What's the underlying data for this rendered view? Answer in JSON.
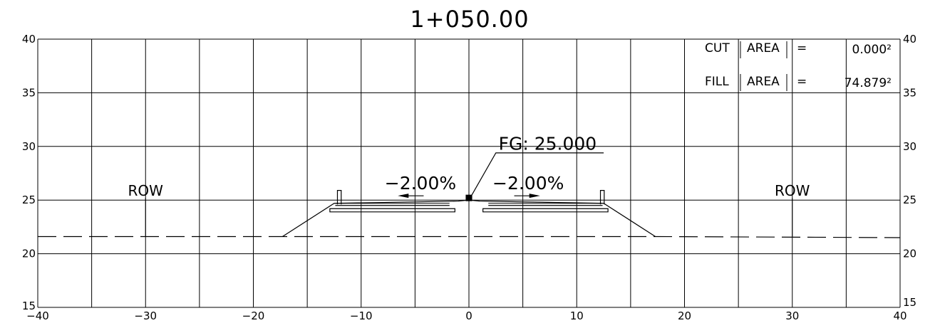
{
  "title": "1+050.00",
  "chart_data": {
    "type": "cross-section",
    "title": "1+050.00",
    "x_range": [
      -40,
      40
    ],
    "y_range": [
      15,
      40
    ],
    "x_ticks": [
      -40,
      -30,
      -20,
      -10,
      0,
      10,
      20,
      30,
      40
    ],
    "y_ticks": [
      15,
      20,
      25,
      30,
      35,
      40
    ],
    "x_tick_labels": [
      "-40",
      "-30",
      "-20",
      "-10",
      "0",
      "10",
      "20",
      "30",
      "40"
    ],
    "y_tick_labels": [
      "15",
      "20",
      "25",
      "30",
      "35",
      "40"
    ],
    "grid": true,
    "grid_step_x": 5,
    "grid_step_y": 5,
    "existing_ground": [
      [
        -40,
        21.6
      ],
      [
        -17.5,
        21.6
      ],
      [
        17.5,
        21.6
      ],
      [
        40,
        21.5
      ]
    ],
    "finished_grade": [
      [
        -17.3,
        21.6
      ],
      [
        -12.5,
        24.7
      ],
      [
        -1,
        24.9
      ],
      [
        0,
        25.0
      ],
      [
        1,
        24.9
      ],
      [
        12.5,
        24.7
      ],
      [
        17.3,
        21.6
      ]
    ],
    "row_markers": [
      {
        "x": -30,
        "label": "ROW"
      },
      {
        "x": 30,
        "label": "ROW"
      }
    ],
    "slope_labels": [
      {
        "x": -4.5,
        "text": "−2.00%",
        "direction": "left"
      },
      {
        "x": 5.5,
        "text": "−2.00%",
        "direction": "right"
      }
    ],
    "fg_label": {
      "text": "FG: 25.000",
      "x": 0,
      "y": 25.0
    }
  },
  "areas": {
    "cut": {
      "label1": "CUT",
      "label2": "AREA",
      "eq": "=",
      "value": "0.000²"
    },
    "fill": {
      "label1": "FILL",
      "label2": "AREA",
      "eq": "=",
      "value": "74.879²"
    }
  }
}
